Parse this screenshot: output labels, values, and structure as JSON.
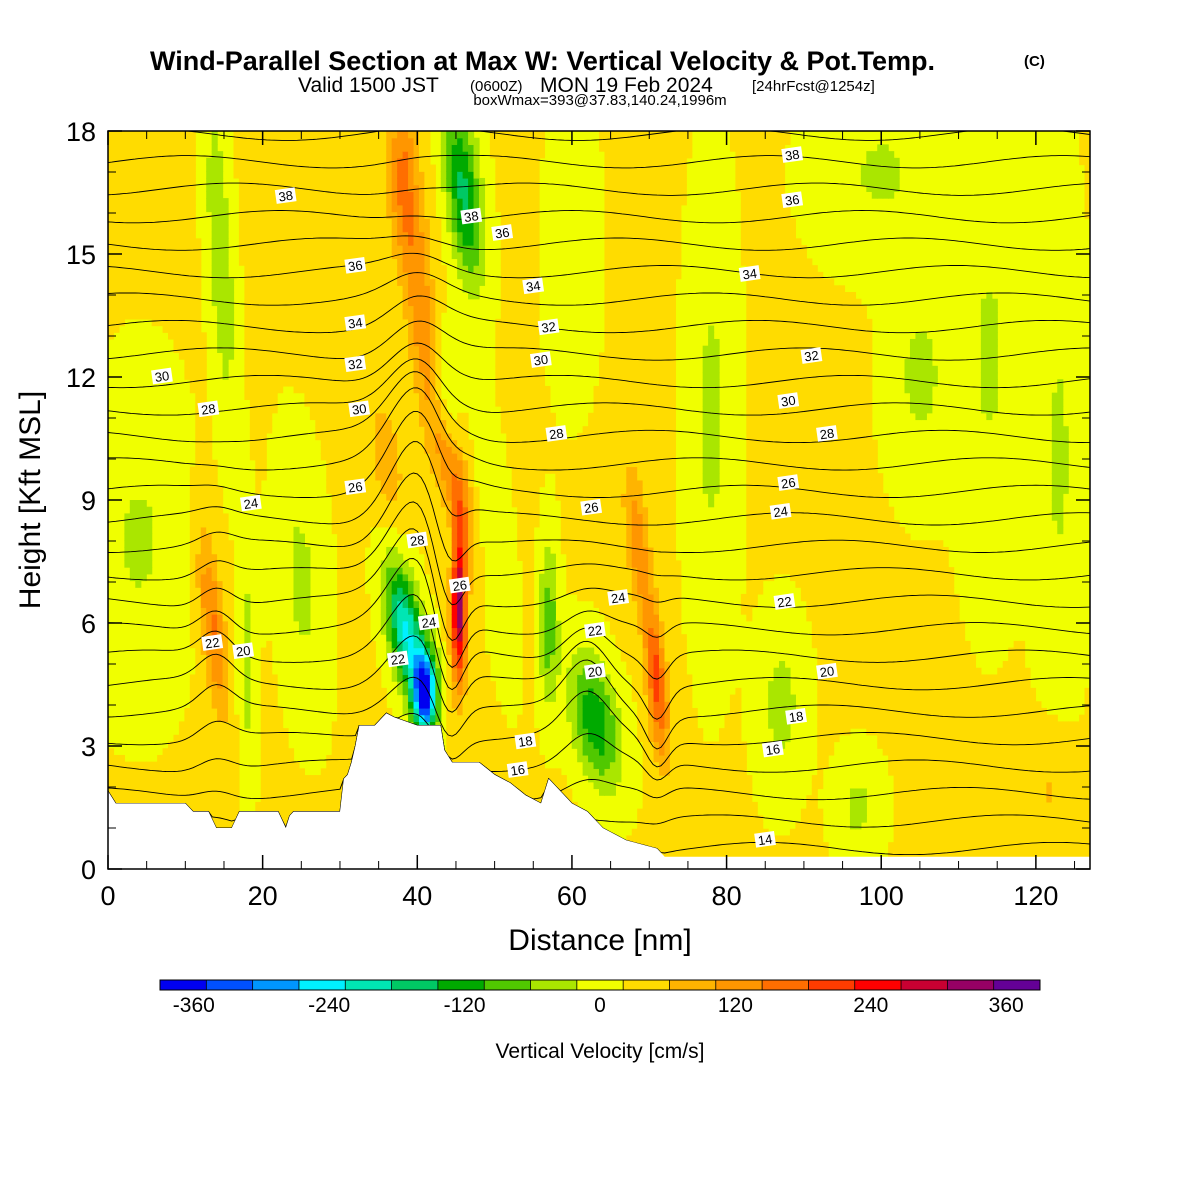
{
  "header": {
    "title": "Wind-Parallel Section at Max W: Vertical Velocity & Pot.Temp.",
    "title_suffix": "(C)",
    "subtitle_pre": "Valid 1500 JST",
    "subtitle_small1": "(0600Z)",
    "subtitle_mid": "MON 19 Feb 2024",
    "subtitle_small2": "[24hrFcst@1254z]",
    "subtitle2": "boxWmax=393@37.83,140.24,1996m"
  },
  "chart_data": {
    "type": "contour",
    "xlabel": "Distance [nm]",
    "ylabel": "Height [Kft MSL]",
    "xlim": [
      0,
      127
    ],
    "ylim": [
      0,
      18
    ],
    "xticks": [
      0,
      20,
      40,
      60,
      80,
      100,
      120
    ],
    "yticks": [
      0,
      3,
      6,
      9,
      12,
      15,
      18
    ],
    "colorbar": {
      "label": "Vertical Velocity [cm/s]",
      "ticks": [
        -360,
        -240,
        -120,
        0,
        120,
        240,
        360
      ],
      "range": [
        -390,
        390
      ],
      "colors": [
        "#0000f0",
        "#0050ff",
        "#0096ff",
        "#00f0ff",
        "#00e6b4",
        "#00c864",
        "#00aa00",
        "#50c800",
        "#aae600",
        "#f0ff00",
        "#ffdc00",
        "#ffb400",
        "#ff9600",
        "#ff6e00",
        "#ff3c00",
        "#ff0000",
        "#c80032",
        "#960064",
        "#640096"
      ]
    },
    "terrain": [
      [
        0,
        1.9
      ],
      [
        1,
        1.6
      ],
      [
        10,
        1.6
      ],
      [
        11,
        1.4
      ],
      [
        13,
        1.4
      ],
      [
        14,
        1.0
      ],
      [
        16,
        1.0
      ],
      [
        17,
        1.4
      ],
      [
        22,
        1.4
      ],
      [
        23,
        1.0
      ],
      [
        23.5,
        1.3
      ],
      [
        24,
        1.4
      ],
      [
        30,
        1.4
      ],
      [
        30.5,
        2.2
      ],
      [
        31,
        2.3
      ],
      [
        31.5,
        2.6
      ],
      [
        32,
        3.0
      ],
      [
        32.5,
        3.5
      ],
      [
        34.5,
        3.5
      ],
      [
        36,
        3.8
      ],
      [
        37,
        3.7
      ],
      [
        40,
        3.5
      ],
      [
        43,
        3.5
      ],
      [
        43.5,
        2.9
      ],
      [
        44.5,
        2.6
      ],
      [
        48,
        2.6
      ],
      [
        50,
        2.3
      ],
      [
        52,
        2.1
      ],
      [
        54,
        1.8
      ],
      [
        56,
        1.6
      ],
      [
        57,
        2.2
      ],
      [
        58,
        2.0
      ],
      [
        60,
        1.6
      ],
      [
        62,
        1.4
      ],
      [
        64,
        1.0
      ],
      [
        67,
        0.7
      ],
      [
        71,
        0.5
      ],
      [
        72,
        0.3
      ],
      [
        127,
        0.3
      ]
    ],
    "theta_levels": [
      14,
      16,
      18,
      20,
      22,
      24,
      26,
      28,
      30,
      32,
      34,
      36,
      38
    ],
    "theta_labels": [
      {
        "x": 37.5,
        "y": 5.1,
        "v": "22"
      },
      {
        "x": 41.5,
        "y": 6.0,
        "v": "24"
      },
      {
        "x": 45.5,
        "y": 6.9,
        "v": "26"
      },
      {
        "x": 40,
        "y": 8.0,
        "v": "28"
      },
      {
        "x": 32,
        "y": 9.3,
        "v": "26"
      },
      {
        "x": 18.5,
        "y": 8.9,
        "v": "24"
      },
      {
        "x": 13.5,
        "y": 5.5,
        "v": "22"
      },
      {
        "x": 17.5,
        "y": 5.3,
        "v": "20"
      },
      {
        "x": 13,
        "y": 11.2,
        "v": "28"
      },
      {
        "x": 7,
        "y": 12.0,
        "v": "30"
      },
      {
        "x": 32.5,
        "y": 11.2,
        "v": "30"
      },
      {
        "x": 32,
        "y": 12.3,
        "v": "32"
      },
      {
        "x": 32,
        "y": 13.3,
        "v": "34"
      },
      {
        "x": 32,
        "y": 14.7,
        "v": "36"
      },
      {
        "x": 23,
        "y": 16.4,
        "v": "38"
      },
      {
        "x": 47,
        "y": 15.9,
        "v": "38"
      },
      {
        "x": 51,
        "y": 15.5,
        "v": "36"
      },
      {
        "x": 55,
        "y": 14.2,
        "v": "34"
      },
      {
        "x": 57,
        "y": 13.2,
        "v": "32"
      },
      {
        "x": 56,
        "y": 12.4,
        "v": "30"
      },
      {
        "x": 58,
        "y": 10.6,
        "v": "28"
      },
      {
        "x": 62.5,
        "y": 8.8,
        "v": "26"
      },
      {
        "x": 66,
        "y": 6.6,
        "v": "24"
      },
      {
        "x": 63,
        "y": 5.8,
        "v": "22"
      },
      {
        "x": 63,
        "y": 4.8,
        "v": "20"
      },
      {
        "x": 54,
        "y": 3.1,
        "v": "18"
      },
      {
        "x": 53,
        "y": 2.4,
        "v": "16"
      },
      {
        "x": 88.5,
        "y": 17.4,
        "v": "38"
      },
      {
        "x": 88.5,
        "y": 16.3,
        "v": "36"
      },
      {
        "x": 83,
        "y": 14.5,
        "v": "34"
      },
      {
        "x": 91,
        "y": 12.5,
        "v": "32"
      },
      {
        "x": 88,
        "y": 11.4,
        "v": "30"
      },
      {
        "x": 93,
        "y": 10.6,
        "v": "28"
      },
      {
        "x": 88,
        "y": 9.4,
        "v": "26"
      },
      {
        "x": 87,
        "y": 8.7,
        "v": "24"
      },
      {
        "x": 87.5,
        "y": 6.5,
        "v": "22"
      },
      {
        "x": 93,
        "y": 4.8,
        "v": "20"
      },
      {
        "x": 89,
        "y": 3.7,
        "v": "18"
      },
      {
        "x": 86,
        "y": 2.9,
        "v": "16"
      },
      {
        "x": 85,
        "y": 0.7,
        "v": "14"
      }
    ]
  }
}
